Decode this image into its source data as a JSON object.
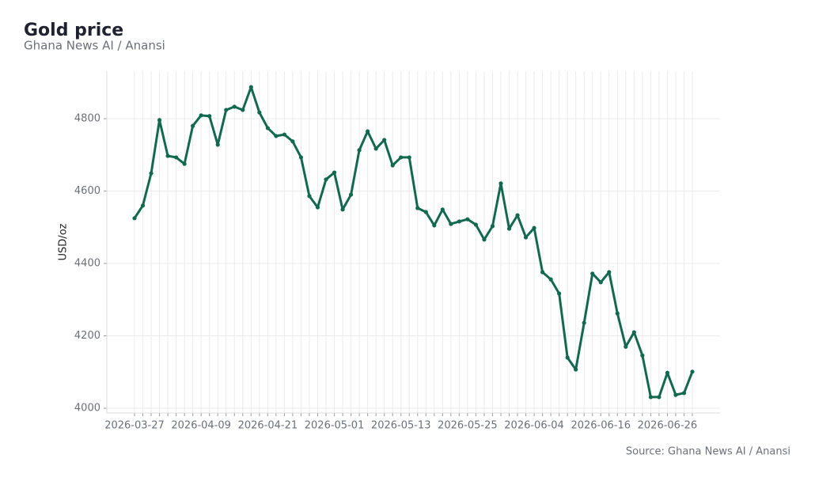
{
  "chart_data": {
    "type": "line",
    "title": "Gold price",
    "subtitle": "Ghana News AI / Anansi",
    "source": "Source: Ghana News AI / Anansi",
    "y_label": "USD/oz",
    "x": [
      "2026-03-27",
      "2026-03-30",
      "2026-03-31",
      "2026-04-01",
      "2026-04-02",
      "2026-04-06",
      "2026-04-07",
      "2026-04-08",
      "2026-04-09",
      "2026-04-10",
      "2026-04-13",
      "2026-04-14",
      "2026-04-15",
      "2026-04-16",
      "2026-04-17",
      "2026-04-20",
      "2026-04-21",
      "2026-04-22",
      "2026-04-23",
      "2026-04-24",
      "2026-04-27",
      "2026-04-28",
      "2026-04-29",
      "2026-04-30",
      "2026-05-01",
      "2026-05-04",
      "2026-05-05",
      "2026-05-06",
      "2026-05-07",
      "2026-05-08",
      "2026-05-11",
      "2026-05-12",
      "2026-05-13",
      "2026-05-14",
      "2026-05-15",
      "2026-05-18",
      "2026-05-19",
      "2026-05-20",
      "2026-05-21",
      "2026-05-22",
      "2026-05-25",
      "2026-05-26",
      "2026-05-27",
      "2026-05-28",
      "2026-05-29",
      "2026-06-01",
      "2026-06-02",
      "2026-06-03",
      "2026-06-04",
      "2026-06-05",
      "2026-06-08",
      "2026-06-09",
      "2026-06-10",
      "2026-06-11",
      "2026-06-12",
      "2026-06-15",
      "2026-06-16",
      "2026-06-17",
      "2026-06-18",
      "2026-06-19",
      "2026-06-22",
      "2026-06-23",
      "2026-06-24",
      "2026-06-25",
      "2026-06-26",
      "2026-06-29",
      "2026-06-30",
      "2026-07-01"
    ],
    "xticks": [
      "2026-03-27",
      "2026-04-09",
      "2026-04-21",
      "2026-05-01",
      "2026-05-13",
      "2026-05-25",
      "2026-06-04",
      "2026-06-16",
      "2026-06-26"
    ],
    "series": [
      {
        "name": "Gold price",
        "color": "#12694f",
        "values": [
          4525,
          4560,
          4649,
          4796,
          4697,
          4693,
          4675,
          4780,
          4809,
          4807,
          4728,
          4824,
          4833,
          4824,
          4887,
          4817,
          4774,
          4752,
          4756,
          4737,
          4693,
          4586,
          4555,
          4632,
          4651,
          4549,
          4590,
          4713,
          4765,
          4717,
          4741,
          4671,
          4693,
          4693,
          4553,
          4542,
          4505,
          4549,
          4509,
          4516,
          4522,
          4507,
          4466,
          4503,
          4621,
          4496,
          4533,
          4472,
          4498,
          4376,
          4356,
          4317,
          4140,
          4107,
          4236,
          4372,
          4348,
          4376,
          4262,
          4170,
          4210,
          4146,
          4031,
          4031,
          4098,
          4037,
          4042,
          4101
        ]
      }
    ],
    "ylim": [
      3987,
      4931
    ],
    "yticks": [
      4000,
      4200,
      4400,
      4600,
      4800
    ],
    "grid": true
  }
}
